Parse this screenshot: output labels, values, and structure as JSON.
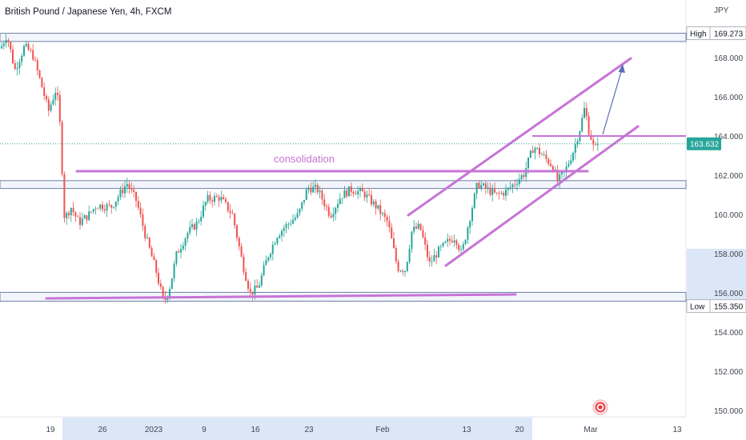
{
  "chart_data": {
    "type": "candlestick",
    "title": "British Pound / Japanese Yen, 4h, FXCM",
    "currency": "JPY",
    "ylim": [
      149.7,
      170.6
    ],
    "y_ticks": [
      "150.000",
      "152.000",
      "154.000",
      "156.000",
      "158.000",
      "160.000",
      "162.000",
      "164.000",
      "166.000",
      "168.000"
    ],
    "x_ticks": [
      {
        "label": "19",
        "x": 63
      },
      {
        "label": "26",
        "x": 128
      },
      {
        "label": "2023",
        "x": 192
      },
      {
        "label": "9",
        "x": 255
      },
      {
        "label": "16",
        "x": 319
      },
      {
        "label": "23",
        "x": 386
      },
      {
        "label": "Feb",
        "x": 478
      },
      {
        "label": "13",
        "x": 583
      },
      {
        "label": "20",
        "x": 649
      },
      {
        "label": "Mar",
        "x": 738
      },
      {
        "label": "13",
        "x": 846
      }
    ],
    "grid": false,
    "colors": {
      "up": "#26a69a",
      "down": "#ef5350",
      "annotation": "#c774d6",
      "zone": "#5b7ec9",
      "arrow": "#5b6fb4",
      "price_line": "#26a69a"
    },
    "price_badges": [
      {
        "tag": "High",
        "value": "169.273",
        "price": 169.273
      },
      {
        "tag": "",
        "value": "163.632",
        "price": 163.632,
        "current": true
      },
      {
        "tag": "Low",
        "value": "155.350",
        "price": 155.35
      }
    ],
    "annotation": "consolidation",
    "zones": [
      {
        "name": "high-zone",
        "from": 168.85,
        "to": 169.27
      },
      {
        "name": "mid-zone",
        "from": 161.35,
        "to": 161.75
      },
      {
        "name": "low-zone",
        "from": 155.6,
        "to": 156.05
      }
    ],
    "keypoints": [
      [
        2,
        168.5
      ],
      [
        10,
        169.2
      ],
      [
        20,
        167.4
      ],
      [
        32,
        168.6
      ],
      [
        42,
        168.2
      ],
      [
        52,
        166.8
      ],
      [
        62,
        165.3
      ],
      [
        72,
        166.5
      ],
      [
        76,
        164.8
      ],
      [
        82,
        159.8
      ],
      [
        90,
        160.4
      ],
      [
        100,
        159.6
      ],
      [
        112,
        160.0
      ],
      [
        122,
        160.5
      ],
      [
        140,
        160.4
      ],
      [
        160,
        161.6
      ],
      [
        172,
        160.7
      ],
      [
        184,
        158.8
      ],
      [
        196,
        157.2
      ],
      [
        206,
        155.5
      ],
      [
        214,
        156.4
      ],
      [
        222,
        158.0
      ],
      [
        236,
        159.1
      ],
      [
        248,
        159.6
      ],
      [
        260,
        160.8
      ],
      [
        276,
        160.9
      ],
      [
        292,
        160.0
      ],
      [
        304,
        157.6
      ],
      [
        314,
        156.0
      ],
      [
        324,
        156.3
      ],
      [
        336,
        157.9
      ],
      [
        348,
        159.0
      ],
      [
        360,
        159.5
      ],
      [
        374,
        160.0
      ],
      [
        386,
        161.4
      ],
      [
        398,
        161.3
      ],
      [
        414,
        160.0
      ],
      [
        428,
        161.0
      ],
      [
        440,
        161.3
      ],
      [
        456,
        161.1
      ],
      [
        472,
        160.4
      ],
      [
        486,
        159.6
      ],
      [
        498,
        157.3
      ],
      [
        508,
        157.2
      ],
      [
        516,
        159.2
      ],
      [
        526,
        159.4
      ],
      [
        538,
        157.5
      ],
      [
        548,
        158.1
      ],
      [
        560,
        158.6
      ],
      [
        570,
        158.9
      ],
      [
        578,
        158.0
      ],
      [
        588,
        159.8
      ],
      [
        598,
        161.6
      ],
      [
        610,
        161.3
      ],
      [
        622,
        161.0
      ],
      [
        634,
        161.2
      ],
      [
        646,
        161.7
      ],
      [
        656,
        162.1
      ],
      [
        668,
        163.5
      ],
      [
        680,
        163.0
      ],
      [
        692,
        162.5
      ],
      [
        698,
        161.7
      ],
      [
        708,
        162.3
      ],
      [
        718,
        163.3
      ],
      [
        726,
        164.4
      ],
      [
        732,
        165.5
      ],
      [
        737,
        164.3
      ],
      [
        741,
        163.8
      ],
      [
        744,
        163.2
      ],
      [
        747,
        163.63
      ]
    ]
  }
}
